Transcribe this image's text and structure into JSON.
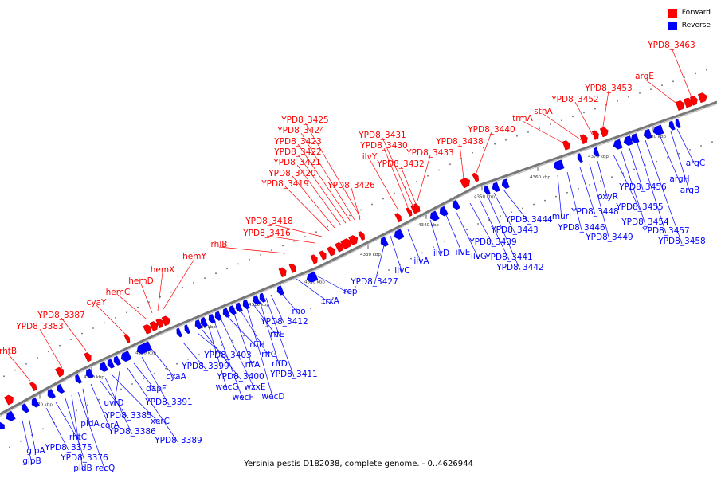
{
  "caption": "Yersinia pestis D182038, complete genome. - 0..4626944",
  "legend": [
    {
      "label": "Forward",
      "color": "#ff0000"
    },
    {
      "label": "Reverse",
      "color": "#0000ff"
    }
  ],
  "colors": {
    "forward": "#ff0000",
    "reverse": "#0000ff",
    "backbone": "#777777"
  },
  "forward_labels": [
    {
      "text": "rhtB"
    },
    {
      "text": "YPD8_3383"
    },
    {
      "text": "YPD8_3387"
    },
    {
      "text": "cyaY"
    },
    {
      "text": "hemC"
    },
    {
      "text": "hemD"
    },
    {
      "text": "hemX"
    },
    {
      "text": "hemY"
    },
    {
      "text": "rhlB"
    },
    {
      "text": "YPD8_3416"
    },
    {
      "text": "YPD8_3418"
    },
    {
      "text": "YPD8_3419"
    },
    {
      "text": "YPD8_3420"
    },
    {
      "text": "YPD8_3421"
    },
    {
      "text": "YPD8_3422"
    },
    {
      "text": "YPD8_3423"
    },
    {
      "text": "YPD8_3424"
    },
    {
      "text": "YPD8_3425"
    },
    {
      "text": "YPD8_3426"
    },
    {
      "text": "ilvY"
    },
    {
      "text": "YPD8_3430"
    },
    {
      "text": "YPD8_3431"
    },
    {
      "text": "YPD8_3432"
    },
    {
      "text": "YPD8_3433"
    },
    {
      "text": "YPD8_3438"
    },
    {
      "text": "YPD8_3440"
    },
    {
      "text": "trmA"
    },
    {
      "text": "sthA"
    },
    {
      "text": "YPD8_3452"
    },
    {
      "text": "YPD8_3453"
    },
    {
      "text": "argE"
    },
    {
      "text": "YPD8_3463"
    }
  ],
  "reverse_labels": [
    {
      "text": "glpA"
    },
    {
      "text": "glpB"
    },
    {
      "text": "YPD8_3375"
    },
    {
      "text": "rhtC"
    },
    {
      "text": "YPD8_3376"
    },
    {
      "text": "pldB"
    },
    {
      "text": "recQ"
    },
    {
      "text": "pldA"
    },
    {
      "text": "corA"
    },
    {
      "text": "YPD8_3385"
    },
    {
      "text": "YPD8_3386"
    },
    {
      "text": "xerC"
    },
    {
      "text": "uvrD"
    },
    {
      "text": "YPD8_3389"
    },
    {
      "text": "dapF"
    },
    {
      "text": "YPD8_3391"
    },
    {
      "text": "cyaA"
    },
    {
      "text": "YPD8_3399"
    },
    {
      "text": "YPD8_3403"
    },
    {
      "text": "YPD8_3400"
    },
    {
      "text": "wecG"
    },
    {
      "text": "wecF"
    },
    {
      "text": "wzxE"
    },
    {
      "text": "rffH"
    },
    {
      "text": "rffA"
    },
    {
      "text": "rffG"
    },
    {
      "text": "wecD"
    },
    {
      "text": "rffE"
    },
    {
      "text": "rffD"
    },
    {
      "text": "YPD8_3411"
    },
    {
      "text": "YPD8_3412"
    },
    {
      "text": "rho"
    },
    {
      "text": "trxA"
    },
    {
      "text": "rep"
    },
    {
      "text": "YPD8_3427"
    },
    {
      "text": "ilvC"
    },
    {
      "text": "ilvA"
    },
    {
      "text": "ilvD"
    },
    {
      "text": "ilvE"
    },
    {
      "text": "ilvG"
    },
    {
      "text": "YPD8_3439"
    },
    {
      "text": "YPD8_3441"
    },
    {
      "text": "YPD8_3442"
    },
    {
      "text": "YPD8_3443"
    },
    {
      "text": "YPD8_3444"
    },
    {
      "text": "murI"
    },
    {
      "text": "YPD8_3446"
    },
    {
      "text": "YPD8_3448"
    },
    {
      "text": "YPD8_3449"
    },
    {
      "text": "oxyR"
    },
    {
      "text": "YPD8_3455"
    },
    {
      "text": "YPD8_3454"
    },
    {
      "text": "YPD8_3456"
    },
    {
      "text": "YPD8_3457"
    },
    {
      "text": "YPD8_3458"
    },
    {
      "text": "argH"
    },
    {
      "text": "argB"
    },
    {
      "text": "argC"
    }
  ],
  "ticks": [
    {
      "text": "4270 kbp"
    },
    {
      "text": "4280 kbp"
    },
    {
      "text": "4290 kbp"
    },
    {
      "text": "4300 kbp"
    },
    {
      "text": "4310 kbp"
    },
    {
      "text": "4320 kbp"
    },
    {
      "text": "4330 kbp"
    },
    {
      "text": "4340 kbp"
    },
    {
      "text": "4350 kbp"
    },
    {
      "text": "4360 kbp"
    },
    {
      "text": "4370 kbp"
    },
    {
      "text": "4380 kbp"
    }
  ]
}
